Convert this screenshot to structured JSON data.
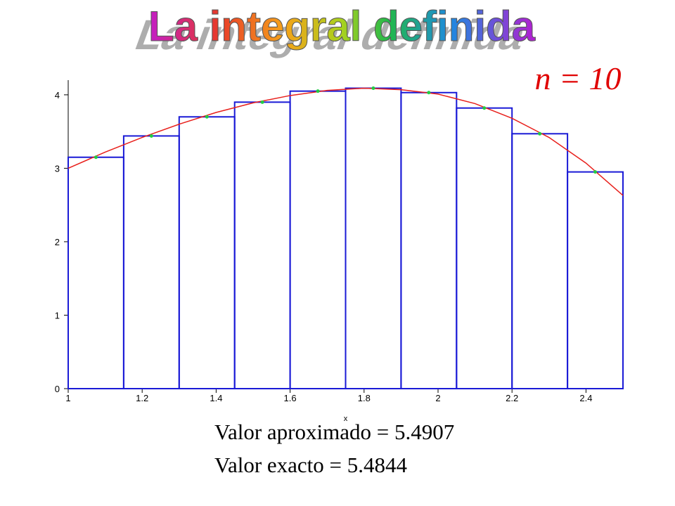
{
  "title": "La integral definida",
  "n_label": "n = 10",
  "annotations": [
    "Valor aproximado = 5.4907",
    "Valor exacto = 5.4844"
  ],
  "chart_data": {
    "type": "riemann",
    "x_label": "x",
    "xlim": [
      1,
      2.5
    ],
    "ylim": [
      0,
      4.2
    ],
    "xticks": [
      1,
      1.2,
      1.4,
      1.6,
      1.8,
      2,
      2.2,
      2.4
    ],
    "yticks": [
      0,
      1,
      2,
      3,
      4
    ],
    "rectangles": {
      "color": "#1a1ad6",
      "point_color": "#22cc44",
      "bins": [
        1,
        1.15,
        1.3,
        1.45,
        1.6,
        1.75,
        1.9,
        2.05,
        2.2,
        2.35,
        2.5
      ],
      "values": [
        3.15,
        3.44,
        3.7,
        3.9,
        4.05,
        4.09,
        4.03,
        3.82,
        3.47,
        2.95
      ]
    },
    "curve": {
      "color": "#e8201c",
      "x": [
        1,
        1.1,
        1.2,
        1.3,
        1.4,
        1.5,
        1.6,
        1.7,
        1.8,
        1.9,
        2,
        2.1,
        2.2,
        2.3,
        2.4,
        2.5
      ],
      "values": [
        3.0,
        3.22,
        3.42,
        3.6,
        3.76,
        3.89,
        3.99,
        4.06,
        4.09,
        4.07,
        4.01,
        3.88,
        3.68,
        3.42,
        3.07,
        2.63
      ]
    }
  }
}
